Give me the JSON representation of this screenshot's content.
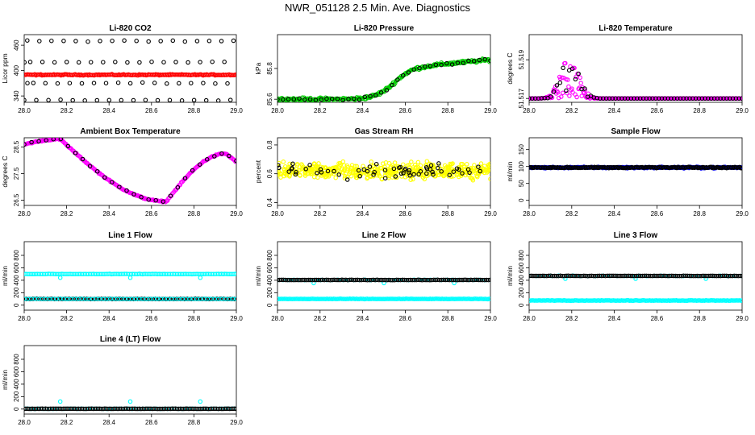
{
  "figure": {
    "title": "NWR_051128  2.5 Min. Ave. Diagnostics"
  },
  "colors": {
    "black": "#000000",
    "red": "#ff0000",
    "green": "#00cc00",
    "magenta": "#ff00ff",
    "yellow": "#ffff00",
    "cyan": "#00ffff",
    "blue": "#0000ff"
  },
  "chart_data": [
    {
      "id": "p1",
      "type": "scatter",
      "title": "Li-820 CO2",
      "ylabel": "Licor ppm",
      "xlim": [
        28.0,
        29.0
      ],
      "ylim": [
        325,
        485
      ],
      "xticks": [
        "28.0",
        "28.2",
        "28.4",
        "28.6",
        "28.8",
        "29.0"
      ],
      "yticks": [
        {
          "v": 340,
          "t": "340"
        },
        {
          "v": 400,
          "t": "400"
        },
        {
          "v": 460,
          "t": "460"
        }
      ],
      "series": [
        {
          "name": "calibration black",
          "color": "black",
          "gen": "co2black"
        },
        {
          "name": "ambient red",
          "color": "red",
          "gen": "flat",
          "level": 390,
          "noise": 1.5,
          "n": 180
        }
      ]
    },
    {
      "id": "p2",
      "type": "scatter",
      "title": "Li-820 Pressure",
      "ylabel": "kPa",
      "xlim": [
        28.0,
        29.0
      ],
      "ylim": [
        85.58,
        86.02
      ],
      "xticks": [
        "28.0",
        "28.2",
        "28.4",
        "28.6",
        "28.8",
        "29.0"
      ],
      "yticks": [
        {
          "v": 85.6,
          "t": "85.6"
        },
        {
          "v": 85.8,
          "t": "85.8"
        }
      ],
      "series": [
        {
          "name": "green",
          "color": "green",
          "gen": "pressure",
          "n": 240,
          "noise": 0.012
        },
        {
          "name": "black",
          "color": "black",
          "gen": "pressure",
          "n": 40,
          "noise": 0.01
        }
      ]
    },
    {
      "id": "p3",
      "type": "scatter",
      "title": "Li-820 Temperature",
      "ylabel": "degrees C",
      "xlim": [
        28.0,
        29.0
      ],
      "ylim": [
        51.5168,
        51.5203
      ],
      "xticks": [
        "28.0",
        "28.2",
        "28.4",
        "28.6",
        "28.8",
        "29.0"
      ],
      "yticks": [
        {
          "v": 51.517,
          "t": "51.517"
        },
        {
          "v": 51.519,
          "t": "51.519"
        }
      ],
      "series": [
        {
          "name": "magenta",
          "color": "magenta",
          "gen": "temp",
          "n": 260
        },
        {
          "name": "black",
          "color": "black",
          "gen": "temp",
          "n": 70
        }
      ]
    },
    {
      "id": "p4",
      "type": "scatter",
      "title": "Ambient Box Temperature",
      "ylabel": "degrees C",
      "xlim": [
        28.0,
        29.0
      ],
      "ylim": [
        26.3,
        28.85
      ],
      "xticks": [
        "28.0",
        "28.2",
        "28.4",
        "28.6",
        "28.8",
        "29.0"
      ],
      "yticks": [
        {
          "v": 26.5,
          "t": "26.5"
        },
        {
          "v": 27.5,
          "t": "27.5"
        },
        {
          "v": 28.5,
          "t": "28.5"
        }
      ],
      "series": [
        {
          "name": "magenta",
          "color": "magenta",
          "gen": "ambient",
          "n": 220
        },
        {
          "name": "black",
          "color": "black",
          "gen": "ambient",
          "n": 30
        }
      ]
    },
    {
      "id": "p5",
      "type": "scatter",
      "title": "Gas Stream RH",
      "ylabel": "percent",
      "xlim": [
        28.0,
        29.0
      ],
      "ylim": [
        0.38,
        0.85
      ],
      "xticks": [
        "28.0",
        "28.2",
        "28.4",
        "28.6",
        "28.8",
        "29.0"
      ],
      "yticks": [
        {
          "v": 0.4,
          "t": "0.4"
        },
        {
          "v": 0.6,
          "t": "0.6"
        },
        {
          "v": 0.8,
          "t": "0.8"
        }
      ],
      "series": [
        {
          "name": "yellow",
          "color": "yellow",
          "gen": "rh",
          "n": 500,
          "noise": 0.065
        },
        {
          "name": "black",
          "color": "black",
          "gen": "rh",
          "n": 60,
          "noise": 0.06
        }
      ]
    },
    {
      "id": "p6",
      "type": "scatter",
      "title": "Sample Flow",
      "ylabel": "ml/min",
      "xlim": [
        28.0,
        29.0
      ],
      "ylim": [
        -15,
        185
      ],
      "xticks": [
        "28.0",
        "28.2",
        "28.4",
        "28.6",
        "28.8",
        "29.0"
      ],
      "yticks": [
        {
          "v": 0,
          "t": "0"
        },
        {
          "v": 50,
          "t": "50"
        },
        {
          "v": 100,
          "t": "100"
        },
        {
          "v": 150,
          "t": "150"
        }
      ],
      "series": [
        {
          "name": "blue",
          "color": "blue",
          "gen": "flat",
          "level": 97,
          "noise": 2.5,
          "n": 250
        },
        {
          "name": "black",
          "color": "black",
          "gen": "flat",
          "level": 97,
          "noise": 2,
          "n": 180
        }
      ]
    },
    {
      "id": "p7",
      "type": "scatter",
      "title": "Line 1 Flow",
      "ylabel": "ml/min",
      "xlim": [
        28.0,
        29.0
      ],
      "ylim": [
        -80,
        1020
      ],
      "xticks": [
        "28.0",
        "28.2",
        "28.4",
        "28.6",
        "28.8",
        "29.0"
      ],
      "yticks": [
        {
          "v": 0,
          "t": "0"
        },
        {
          "v": 200,
          "t": "200"
        },
        {
          "v": 400,
          "t": "400"
        },
        {
          "v": 600,
          "t": "600"
        },
        {
          "v": 800,
          "t": "800"
        }
      ],
      "series": [
        {
          "name": "cyan high",
          "color": "cyan",
          "gen": "flat",
          "level": 500,
          "noise": 4,
          "n": 130,
          "dips": [
            28.17,
            28.5,
            28.83
          ],
          "dipValue": 440
        },
        {
          "name": "black",
          "color": "black",
          "gen": "flat",
          "level": 100,
          "noise": 3,
          "n": 100
        },
        {
          "name": "cyan low",
          "color": "cyan",
          "gen": "flat",
          "level": 100,
          "noise": 3,
          "n": 60
        }
      ]
    },
    {
      "id": "p8",
      "type": "scatter",
      "title": "Line 2 Flow",
      "ylabel": "ml/min",
      "xlim": [
        28.0,
        29.0
      ],
      "ylim": [
        -80,
        1020
      ],
      "xticks": [
        "28.0",
        "28.2",
        "28.4",
        "28.6",
        "28.8",
        "29.0"
      ],
      "yticks": [
        {
          "v": 0,
          "t": "0"
        },
        {
          "v": 200,
          "t": "200"
        },
        {
          "v": 400,
          "t": "400"
        },
        {
          "v": 600,
          "t": "600"
        },
        {
          "v": 800,
          "t": "800"
        }
      ],
      "series": [
        {
          "name": "cyan high",
          "color": "cyan",
          "gen": "flat",
          "level": 405,
          "noise": 4,
          "n": 40,
          "dips": [
            28.17,
            28.5,
            28.83
          ],
          "dipValue": 355
        },
        {
          "name": "black",
          "color": "black",
          "gen": "flat",
          "level": 405,
          "noise": 3,
          "n": 110
        },
        {
          "name": "cyan low",
          "color": "cyan",
          "gen": "flat",
          "level": 100,
          "noise": 4,
          "n": 160
        }
      ]
    },
    {
      "id": "p9",
      "type": "scatter",
      "title": "Line 3 Flow",
      "ylabel": "ml/min",
      "xlim": [
        28.0,
        29.0
      ],
      "ylim": [
        -80,
        1020
      ],
      "xticks": [
        "28.0",
        "28.2",
        "28.4",
        "28.6",
        "28.8",
        "29.0"
      ],
      "yticks": [
        {
          "v": 0,
          "t": "0"
        },
        {
          "v": 200,
          "t": "200"
        },
        {
          "v": 400,
          "t": "400"
        },
        {
          "v": 600,
          "t": "600"
        },
        {
          "v": 800,
          "t": "800"
        }
      ],
      "series": [
        {
          "name": "cyan high",
          "color": "cyan",
          "gen": "flat",
          "level": 470,
          "noise": 4,
          "n": 30,
          "dips": [
            28.17,
            28.5,
            28.83
          ],
          "dipValue": 425
        },
        {
          "name": "black",
          "color": "black",
          "gen": "flat",
          "level": 470,
          "noise": 3,
          "n": 110
        },
        {
          "name": "cyan low",
          "color": "cyan",
          "gen": "flat",
          "level": 75,
          "noise": 4,
          "n": 160
        }
      ]
    },
    {
      "id": "p10",
      "type": "scatter",
      "title": "Line 4 (LT) Flow",
      "ylabel": "ml/min",
      "xlim": [
        28.0,
        29.0
      ],
      "ylim": [
        -80,
        1020
      ],
      "xticks": [
        "28.0",
        "28.2",
        "28.4",
        "28.6",
        "28.8",
        "29.0"
      ],
      "yticks": [
        {
          "v": 0,
          "t": "0"
        },
        {
          "v": 200,
          "t": "200"
        },
        {
          "v": 400,
          "t": "400"
        },
        {
          "v": 600,
          "t": "600"
        },
        {
          "v": 800,
          "t": "800"
        }
      ],
      "series": [
        {
          "name": "cyan",
          "color": "cyan",
          "gen": "flat",
          "level": 5,
          "noise": 3,
          "n": 60,
          "spikes": [
            28.17,
            28.5,
            28.83
          ],
          "spikeValue": 120
        },
        {
          "name": "black",
          "color": "black",
          "gen": "flat",
          "level": 5,
          "noise": 2,
          "n": 130
        }
      ]
    }
  ]
}
